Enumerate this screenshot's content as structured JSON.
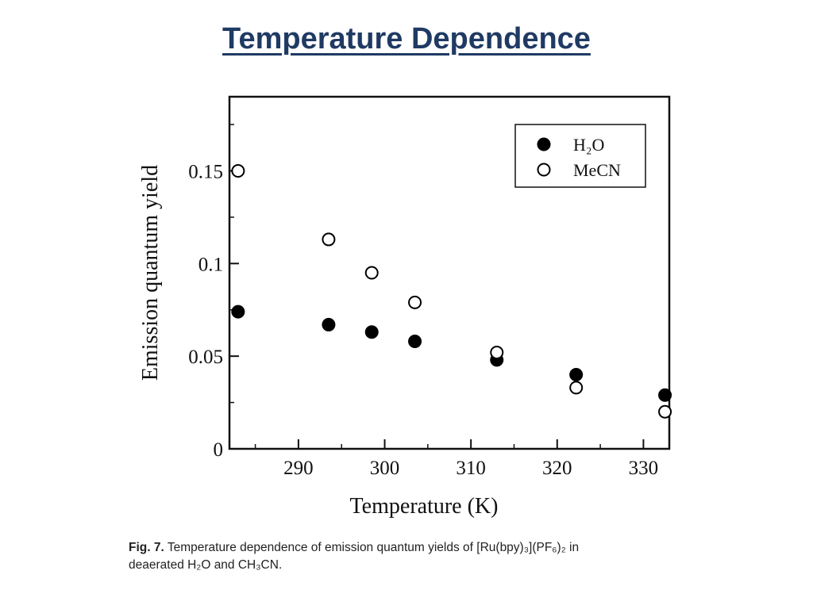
{
  "slide": {
    "title": "Temperature Dependence"
  },
  "caption": {
    "label": "Fig. 7.",
    "text_line1": "Temperature dependence of emission quantum yields of [Ru(bpy)₃](PF₆)₂ in",
    "text_line2": "deaerated H₂O and CH₃CN."
  },
  "chart_data": {
    "type": "scatter",
    "xlabel": "Temperature (K)",
    "ylabel": "Emission quantum yield",
    "xlim": [
      282,
      333
    ],
    "ylim": [
      0,
      0.19
    ],
    "xticks": [
      290,
      300,
      310,
      320,
      330
    ],
    "xtick_labels": [
      "290",
      "300",
      "310",
      "320",
      "330"
    ],
    "yticks": [
      0,
      0.05,
      0.1,
      0.15
    ],
    "ytick_labels": [
      "0",
      "0.05",
      "0.1",
      "0.15"
    ],
    "legend_position": "top-right",
    "grid": false,
    "series": [
      {
        "name": "H₂O",
        "marker": "filled-circle",
        "x": [
          283,
          293.5,
          298.5,
          303.5,
          313,
          322.2,
          332.5
        ],
        "y": [
          0.074,
          0.067,
          0.063,
          0.058,
          0.048,
          0.04,
          0.029
        ]
      },
      {
        "name": "MeCN",
        "marker": "open-circle",
        "x": [
          283,
          293.5,
          298.5,
          303.5,
          313,
          322.2,
          332.5
        ],
        "y": [
          0.15,
          0.113,
          0.095,
          0.079,
          0.052,
          0.033,
          0.02
        ]
      }
    ]
  }
}
